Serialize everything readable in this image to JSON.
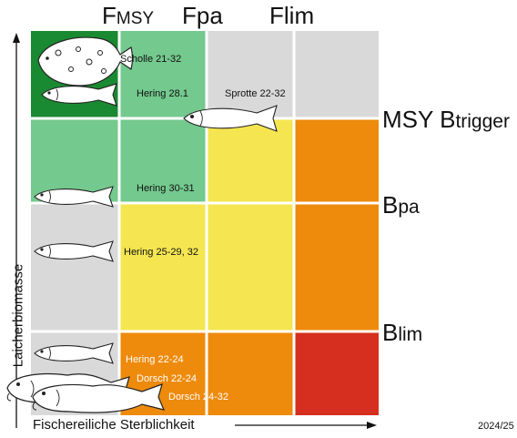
{
  "header_labels": {
    "fmsy_main": "F",
    "fmsy_sub": "MSY",
    "fpa_main": "F",
    "fpa_sub": "pa",
    "flim_main": "F",
    "flim_sub": "lim"
  },
  "side_labels": {
    "msy_btrigger_main": "MSY B",
    "msy_btrigger_sub": "trigger",
    "bpa_main": "B",
    "bpa_sub": "pa",
    "blim_main": "B",
    "blim_sub": "lim"
  },
  "axes": {
    "x_label": "Fischereiliche Sterblichkeit",
    "y_label": "Laicherbiomasse"
  },
  "year": "2024/25",
  "stocks": {
    "scholle": "Scholle 21-32",
    "hering_28_1": "Hering 28.1",
    "sprotte": "Sprotte 22-32",
    "hering_30_31": "Hering 30-31",
    "hering_25_29": "Hering 25-29, 32",
    "hering_22_24": "Hering 22-24",
    "dorsch_22_24": "Dorsch 22-24",
    "dorsch_24_32": "Dorsch  24-32"
  },
  "colors": {
    "dark_green": "#1a8a32",
    "light_green": "#74c98e",
    "gray": "#d9d9d9",
    "yellow": "#f5e651",
    "orange": "#ee8a0c",
    "red": "#d62e1f"
  },
  "icons": {
    "flatfish": "flatfish-icon",
    "herring": "herring-icon",
    "sprat": "sprat-icon",
    "cod": "cod-icon"
  }
}
